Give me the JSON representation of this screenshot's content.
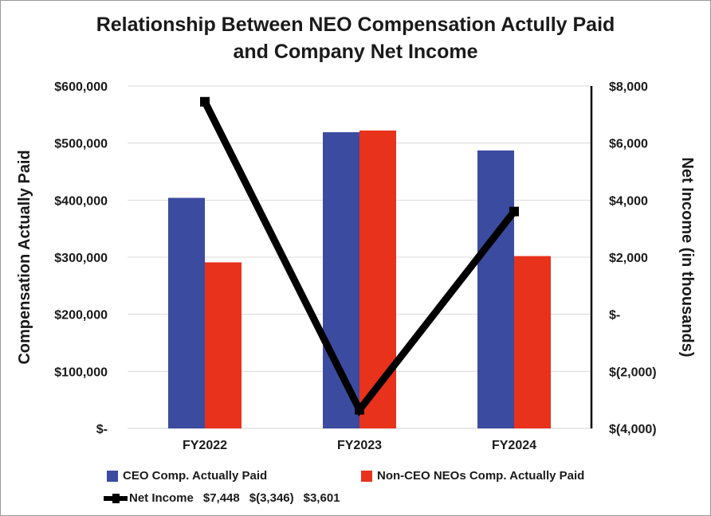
{
  "chart_data": {
    "type": "bar",
    "title": [
      "Relationship Between NEO Compensation Actully Paid",
      "and Company Net Income"
    ],
    "categories": [
      "FY2022",
      "FY2023",
      "FY2024"
    ],
    "series": [
      {
        "name": "CEO Comp. Actually Paid",
        "axis": "left",
        "kind": "bar",
        "color": "#3B4BA0",
        "values": [
          404000,
          519000,
          487000
        ]
      },
      {
        "name": "Non-CEO NEOs Comp. Actually Paid",
        "axis": "left",
        "kind": "bar",
        "color": "#E8321C",
        "values": [
          291000,
          522000,
          302000
        ]
      },
      {
        "name": "Net Income",
        "axis": "right",
        "kind": "line",
        "color": "#000000",
        "values": [
          7448,
          -3346,
          3601
        ]
      }
    ],
    "ylabel": "Compensation Actually Paid",
    "y2label": "Net Income (in thousands)",
    "ylim": [
      0,
      600000
    ],
    "y2lim": [
      -4000,
      8000
    ],
    "yticks": [
      {
        "value": 600000,
        "label": "$600,000"
      },
      {
        "value": 500000,
        "label": "$500,000"
      },
      {
        "value": 400000,
        "label": "$400,000"
      },
      {
        "value": 300000,
        "label": "$300,000"
      },
      {
        "value": 200000,
        "label": "$200,000"
      },
      {
        "value": 100000,
        "label": "$100,000"
      },
      {
        "value": 0,
        "label": "$-"
      }
    ],
    "y2ticks": [
      {
        "value": 8000,
        "label": "$8,000"
      },
      {
        "value": 6000,
        "label": "$6,000"
      },
      {
        "value": 4000,
        "label": "$4,000"
      },
      {
        "value": 2000,
        "label": "$2,000"
      },
      {
        "value": 0,
        "label": "$-"
      },
      {
        "value": -2000,
        "label": "$(2,000)"
      },
      {
        "value": -4000,
        "label": "$(4,000)"
      }
    ],
    "grid": true
  },
  "legend": {
    "ceo_label": "CEO Comp. Actually Paid",
    "nonceo_label": "Non-CEO NEOs Comp. Actually Paid",
    "netincome_label": "Net Income",
    "netincome_values": [
      "$7,448",
      "$(3,346)",
      "$3,601"
    ]
  }
}
